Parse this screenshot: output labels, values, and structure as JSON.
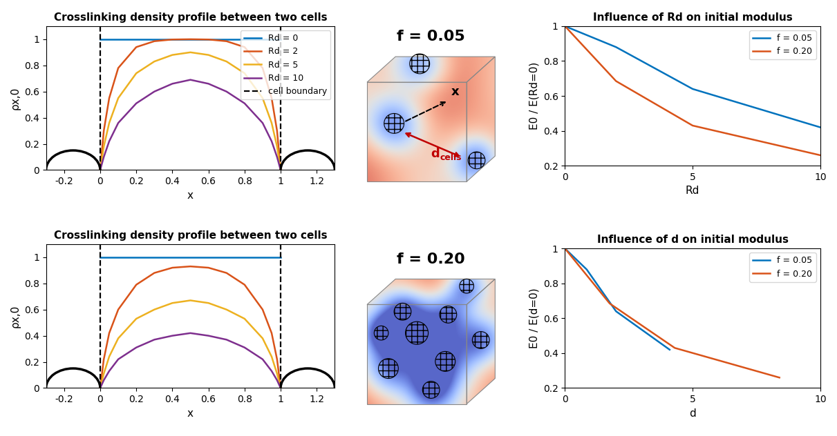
{
  "chart_data": [
    {
      "type": "line",
      "title": "Crosslinking density profile between two cells",
      "xlabel": "x",
      "ylabel": "ρx,0",
      "xlim": [
        -0.3,
        1.3
      ],
      "xticks": [
        -0.2,
        0,
        0.2,
        0.4,
        0.6,
        0.8,
        1,
        1.2
      ],
      "ylim": [
        0,
        1.1
      ],
      "yticks": [
        0,
        0.2,
        0.4,
        0.6,
        0.8,
        1
      ],
      "legend": "upper right",
      "series": [
        {
          "name": "Rd = 0",
          "color": "#0072bd",
          "x": [
            0,
            1
          ],
          "values": [
            1,
            1
          ]
        },
        {
          "name": "Rd = 2",
          "color": "#d95319",
          "x": [
            0,
            0.02,
            0.05,
            0.1,
            0.2,
            0.3,
            0.4,
            0.5,
            0.6,
            0.7,
            0.8,
            0.9,
            0.95,
            0.98,
            1
          ],
          "values": [
            0,
            0.3,
            0.55,
            0.78,
            0.94,
            0.985,
            0.998,
            1.0,
            0.998,
            0.985,
            0.94,
            0.78,
            0.55,
            0.3,
            0
          ]
        },
        {
          "name": "Rd = 5",
          "color": "#edb120",
          "x": [
            0,
            0.02,
            0.05,
            0.1,
            0.2,
            0.3,
            0.4,
            0.5,
            0.6,
            0.7,
            0.8,
            0.9,
            0.95,
            0.98,
            1
          ],
          "values": [
            0,
            0.18,
            0.36,
            0.55,
            0.74,
            0.83,
            0.88,
            0.9,
            0.88,
            0.83,
            0.74,
            0.55,
            0.36,
            0.18,
            0
          ]
        },
        {
          "name": "Rd = 10",
          "color": "#7e2f8e",
          "x": [
            0,
            0.02,
            0.05,
            0.1,
            0.2,
            0.3,
            0.4,
            0.5,
            0.6,
            0.7,
            0.8,
            0.9,
            0.95,
            0.98,
            1
          ],
          "values": [
            0,
            0.1,
            0.22,
            0.36,
            0.51,
            0.6,
            0.66,
            0.69,
            0.66,
            0.6,
            0.51,
            0.36,
            0.22,
            0.1,
            0
          ]
        },
        {
          "name": "cell boundary",
          "type": "vline",
          "color": "black",
          "line_style": "dashed",
          "values": [
            0,
            1
          ]
        }
      ]
    },
    {
      "type": "image",
      "title": "f = 0.05",
      "annotations": [
        {
          "text": "x",
          "color": "black"
        },
        {
          "text": "d",
          "subscript": "cells",
          "color": "#c00000"
        }
      ]
    },
    {
      "type": "line",
      "title": "Influence of Rd on initial modulus",
      "xlabel": "Rd",
      "ylabel": "E0 / E(Rd=0)",
      "xlim": [
        0,
        10
      ],
      "xticks": [
        0,
        5,
        10
      ],
      "ylim": [
        0.2,
        1
      ],
      "yticks": [
        0.2,
        0.4,
        0.6,
        0.8,
        1
      ],
      "legend": "upper right",
      "series": [
        {
          "name": "f = 0.05",
          "color": "#0072bd",
          "x": [
            0,
            2,
            5,
            10
          ],
          "values": [
            1,
            0.88,
            0.64,
            0.42
          ]
        },
        {
          "name": "f = 0.20",
          "color": "#d95319",
          "x": [
            0,
            2,
            5,
            10
          ],
          "values": [
            1,
            0.685,
            0.43,
            0.26
          ]
        }
      ]
    },
    {
      "type": "line",
      "title": "Crosslinking density profile between two cells",
      "xlabel": "x",
      "ylabel": "ρx,0",
      "xlim": [
        -0.3,
        1.3
      ],
      "xticks": [
        -0.2,
        0,
        0.2,
        0.4,
        0.6,
        0.8,
        1,
        1.2
      ],
      "ylim": [
        0,
        1.1
      ],
      "yticks": [
        0,
        0.2,
        0.4,
        0.6,
        0.8,
        1
      ],
      "series": [
        {
          "color": "#0072bd",
          "x": [
            0,
            1
          ],
          "values": [
            1,
            1
          ]
        },
        {
          "color": "#d95319",
          "x": [
            0,
            0.02,
            0.05,
            0.1,
            0.2,
            0.3,
            0.4,
            0.5,
            0.6,
            0.7,
            0.8,
            0.9,
            0.95,
            0.98,
            1
          ],
          "values": [
            0,
            0.22,
            0.42,
            0.6,
            0.79,
            0.88,
            0.92,
            0.93,
            0.92,
            0.88,
            0.79,
            0.6,
            0.42,
            0.22,
            0
          ]
        },
        {
          "color": "#edb120",
          "x": [
            0,
            0.02,
            0.05,
            0.1,
            0.2,
            0.3,
            0.4,
            0.5,
            0.6,
            0.7,
            0.8,
            0.9,
            0.95,
            0.98,
            1
          ],
          "values": [
            0,
            0.11,
            0.24,
            0.38,
            0.53,
            0.6,
            0.65,
            0.67,
            0.65,
            0.6,
            0.53,
            0.38,
            0.24,
            0.11,
            0
          ]
        },
        {
          "color": "#7e2f8e",
          "x": [
            0,
            0.02,
            0.05,
            0.1,
            0.2,
            0.3,
            0.4,
            0.5,
            0.6,
            0.7,
            0.8,
            0.9,
            0.95,
            0.98,
            1
          ],
          "values": [
            0,
            0.06,
            0.13,
            0.22,
            0.31,
            0.37,
            0.4,
            0.42,
            0.4,
            0.37,
            0.31,
            0.22,
            0.13,
            0.06,
            0
          ]
        },
        {
          "type": "vline",
          "color": "black",
          "line_style": "dashed",
          "values": [
            0,
            1
          ]
        }
      ]
    },
    {
      "type": "image",
      "title": "f = 0.20"
    },
    {
      "type": "line",
      "title": "Influence of d on initial modulus",
      "xlabel": "d",
      "ylabel": "E0 / E(d=0)",
      "xlim": [
        0,
        10
      ],
      "xticks": [
        0,
        5,
        10
      ],
      "ylim": [
        0.2,
        1
      ],
      "yticks": [
        0.2,
        0.4,
        0.6,
        0.8,
        1
      ],
      "legend": "upper right",
      "series": [
        {
          "name": "f = 0.05",
          "color": "#0072bd",
          "x": [
            0,
            0.85,
            2.0,
            4.1
          ],
          "values": [
            1,
            0.88,
            0.64,
            0.42
          ]
        },
        {
          "name": "f = 0.20",
          "color": "#d95319",
          "x": [
            0,
            1.75,
            4.3,
            8.4
          ],
          "values": [
            1,
            0.685,
            0.43,
            0.26
          ]
        }
      ]
    }
  ]
}
